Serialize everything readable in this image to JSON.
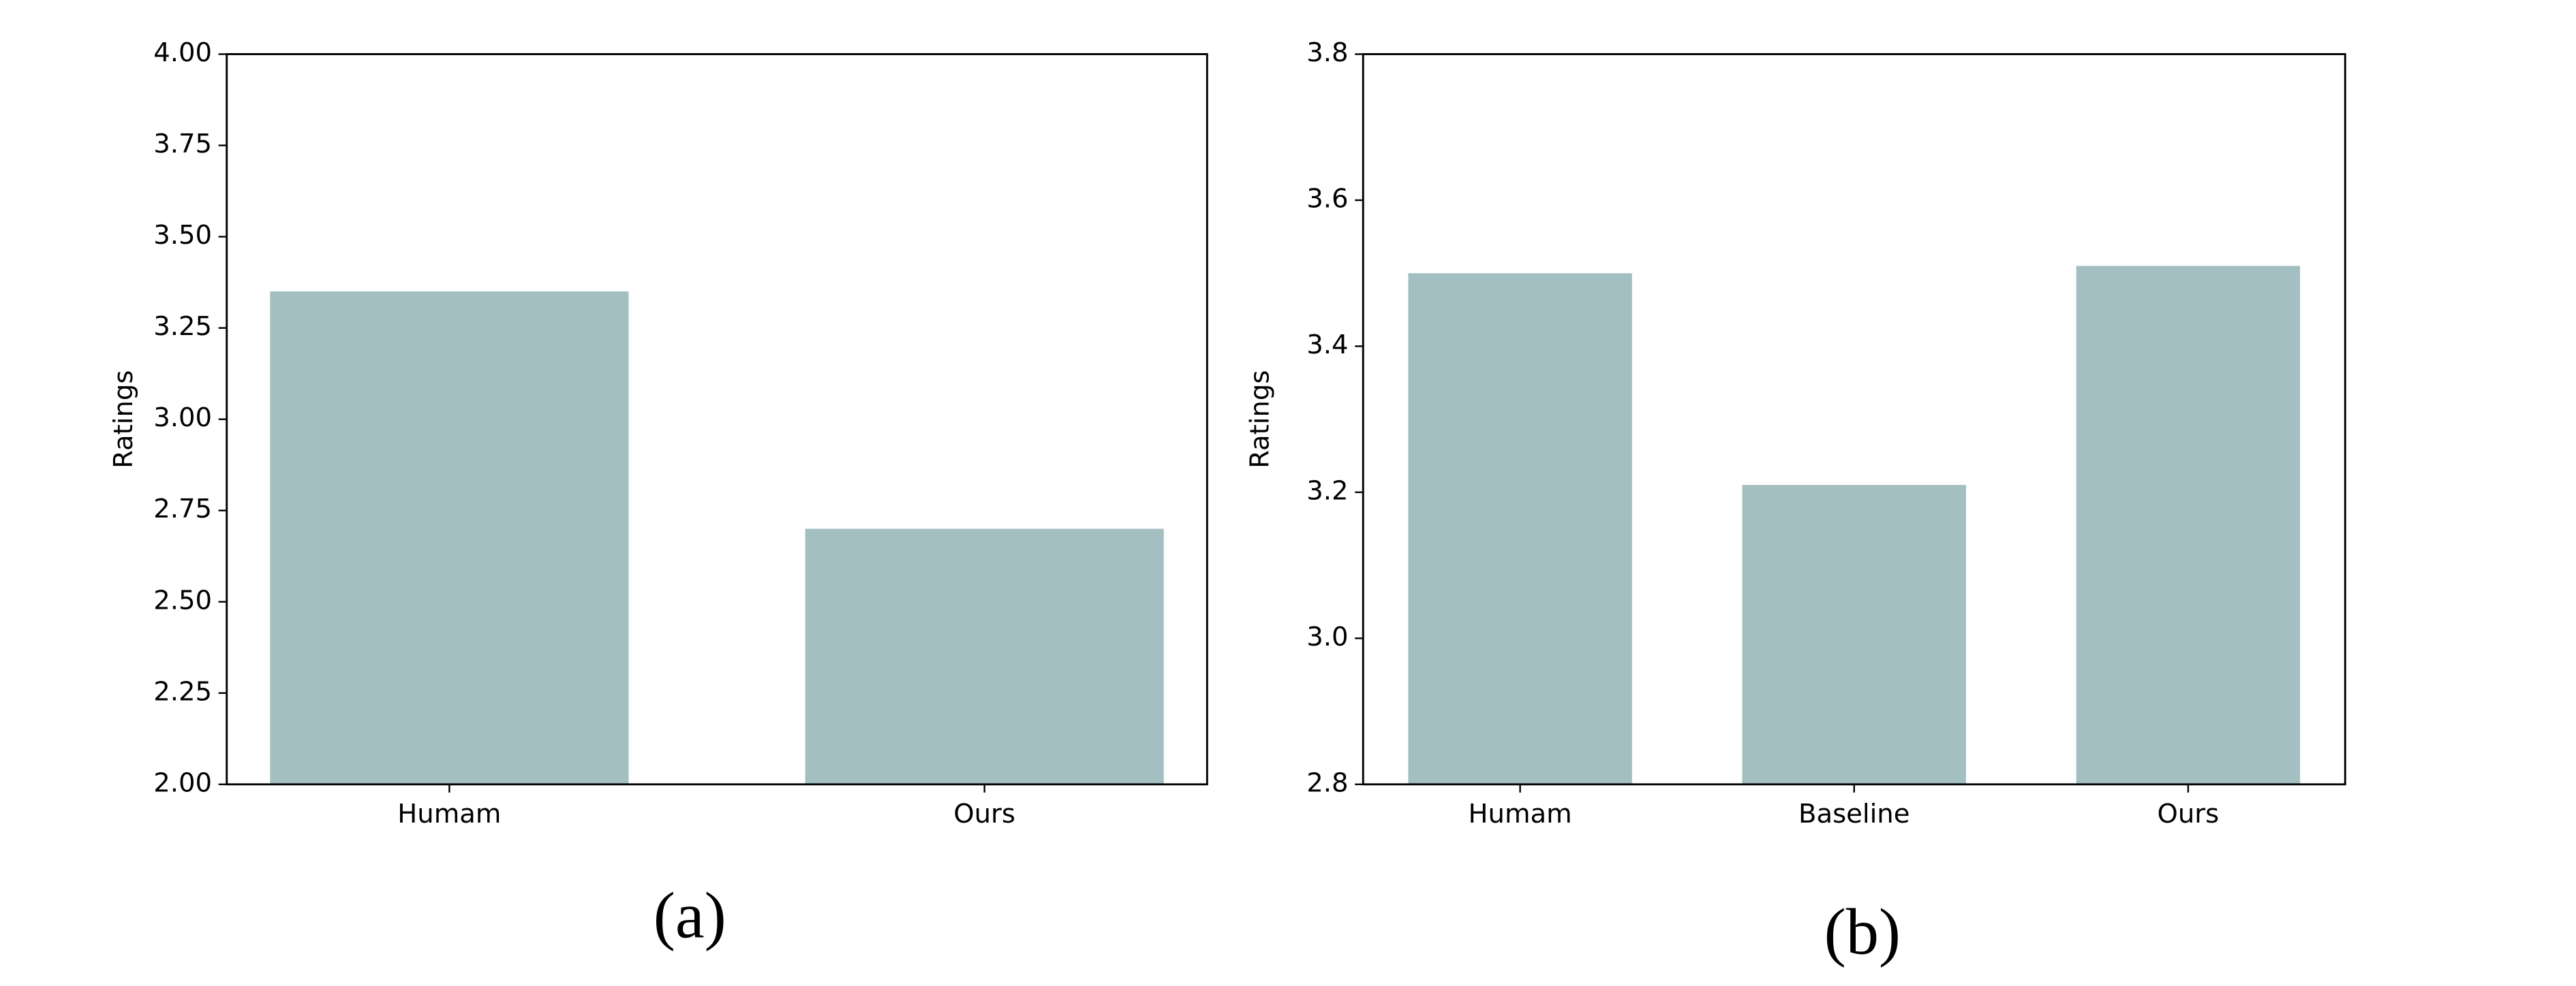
{
  "chart_data": [
    {
      "type": "bar",
      "caption": "(a)",
      "ylabel": "Ratings",
      "categories": [
        "Humam",
        "Ours"
      ],
      "values": [
        3.35,
        2.7
      ],
      "color": "#a3bfc1",
      "ylim": [
        2,
        4
      ],
      "yticks": [
        {
          "value": 2,
          "label": "2.00"
        },
        {
          "value": 2.25,
          "label": "2.25"
        },
        {
          "value": 2.5,
          "label": "2.50"
        },
        {
          "value": 2.75,
          "label": "2.75"
        },
        {
          "value": 3,
          "label": "3.00"
        },
        {
          "value": 3.25,
          "label": "3.25"
        },
        {
          "value": 3.5,
          "label": "3.50"
        },
        {
          "value": 3.75,
          "label": "3.75"
        },
        {
          "value": 4,
          "label": "4.00"
        }
      ]
    },
    {
      "type": "bar",
      "caption": "(b)",
      "ylabel": "Ratings",
      "categories": [
        "Humam",
        "Baseline",
        "Ours"
      ],
      "values": [
        3.5,
        3.21,
        3.51
      ],
      "color": "#a3bfc1",
      "ylim": [
        2.8,
        3.8
      ],
      "yticks": [
        2.8,
        {
          "value": 3,
          "label": "3.0"
        },
        3.2,
        3.4,
        3.6,
        3.8
      ]
    }
  ]
}
